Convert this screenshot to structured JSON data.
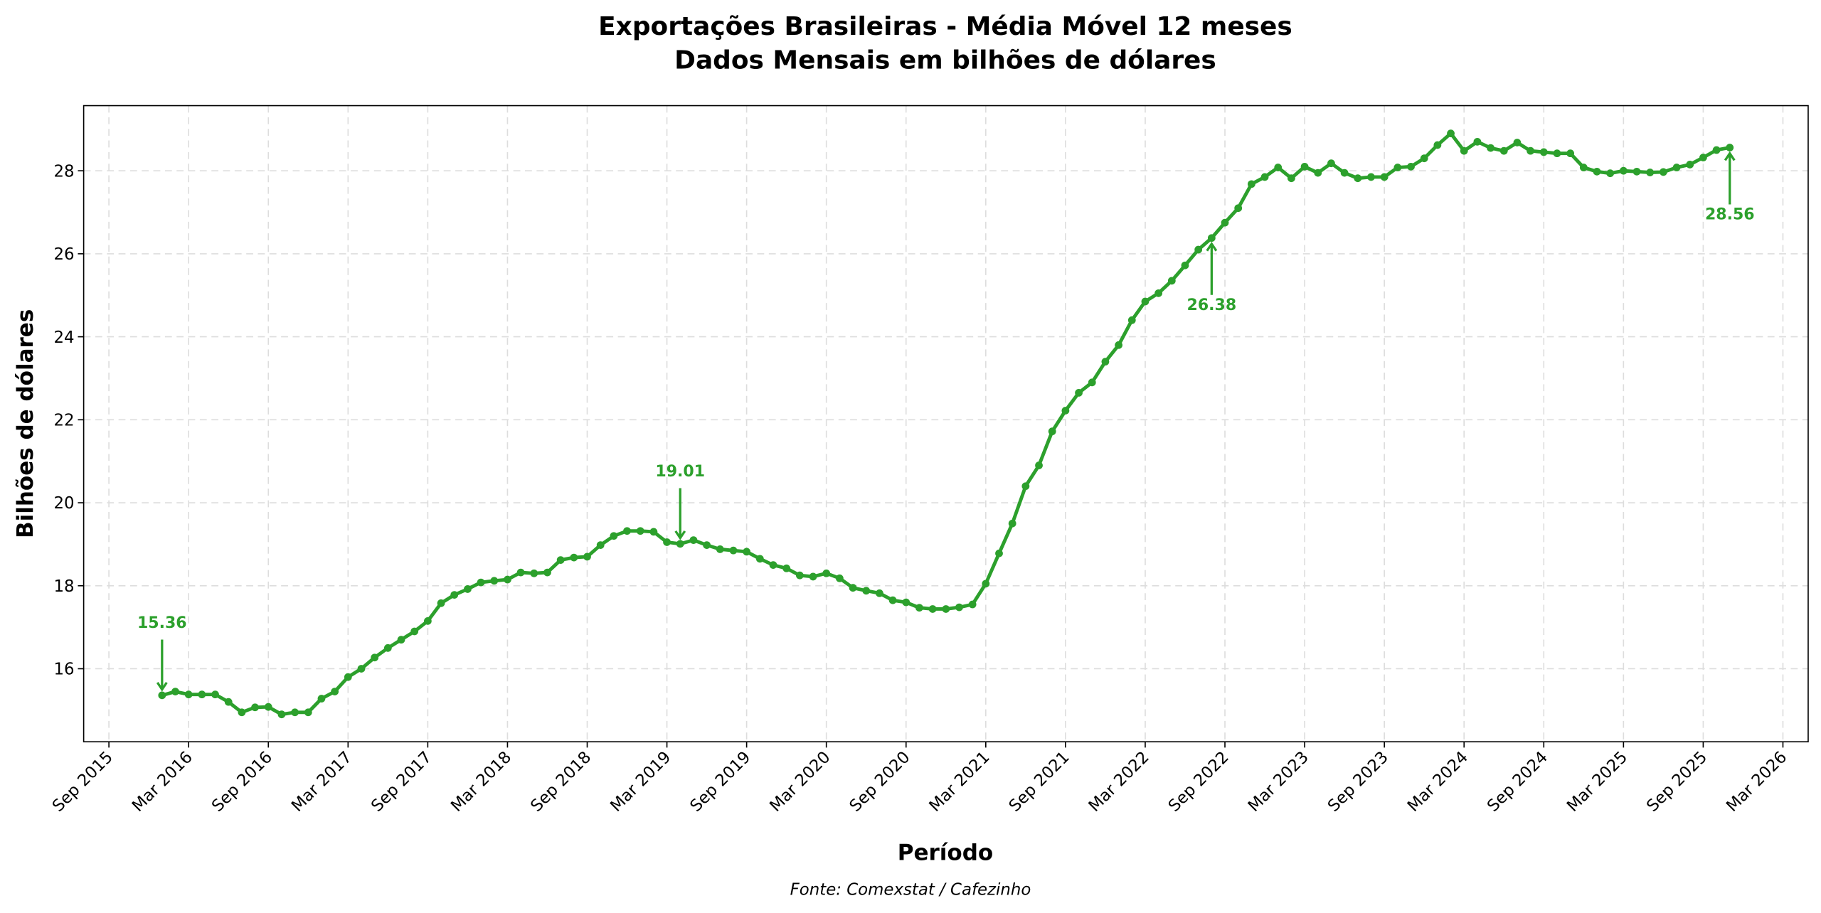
{
  "chart_data": {
    "type": "line",
    "title": "Exportações Brasileiras - Média Móvel 12 meses",
    "subtitle": "Dados Mensais em bilhões de dólares",
    "xlabel": "Período",
    "ylabel": "Bilhões de dólares",
    "source": "Fonte: Comexstat / Cafezinho",
    "start_month": "2016-01",
    "x_range_months_from_start": [
      -5.9,
      123.9
    ],
    "ylim": [
      14.24,
      29.57
    ],
    "yticks": [
      16,
      18,
      20,
      22,
      24,
      26,
      28
    ],
    "xticks": [
      {
        "label": "Sep 2015",
        "month_index": -4
      },
      {
        "label": "Mar 2016",
        "month_index": 2
      },
      {
        "label": "Sep 2016",
        "month_index": 8
      },
      {
        "label": "Mar 2017",
        "month_index": 14
      },
      {
        "label": "Sep 2017",
        "month_index": 20
      },
      {
        "label": "Mar 2018",
        "month_index": 26
      },
      {
        "label": "Sep 2018",
        "month_index": 32
      },
      {
        "label": "Mar 2019",
        "month_index": 38
      },
      {
        "label": "Sep 2019",
        "month_index": 44
      },
      {
        "label": "Mar 2020",
        "month_index": 50
      },
      {
        "label": "Sep 2020",
        "month_index": 56
      },
      {
        "label": "Mar 2021",
        "month_index": 62
      },
      {
        "label": "Sep 2021",
        "month_index": 68
      },
      {
        "label": "Mar 2022",
        "month_index": 74
      },
      {
        "label": "Sep 2022",
        "month_index": 80
      },
      {
        "label": "Mar 2023",
        "month_index": 86
      },
      {
        "label": "Sep 2023",
        "month_index": 92
      },
      {
        "label": "Mar 2024",
        "month_index": 98
      },
      {
        "label": "Sep 2024",
        "month_index": 104
      },
      {
        "label": "Mar 2025",
        "month_index": 110
      },
      {
        "label": "Sep 2025",
        "month_index": 116
      },
      {
        "label": "Mar 2026",
        "month_index": 122
      }
    ],
    "grid": true,
    "color": "#2ca02c",
    "values": [
      15.36,
      15.45,
      15.38,
      15.38,
      15.38,
      15.2,
      14.95,
      15.07,
      15.08,
      14.9,
      14.95,
      14.95,
      15.28,
      15.45,
      15.8,
      16.0,
      16.27,
      16.5,
      16.7,
      16.9,
      17.15,
      17.58,
      17.78,
      17.92,
      18.08,
      18.12,
      18.15,
      18.32,
      18.3,
      18.32,
      18.62,
      18.68,
      18.7,
      18.98,
      19.2,
      19.32,
      19.32,
      19.3,
      19.05,
      19.01,
      19.1,
      18.98,
      18.88,
      18.85,
      18.82,
      18.65,
      18.5,
      18.42,
      18.25,
      18.22,
      18.3,
      18.18,
      17.95,
      17.88,
      17.82,
      17.65,
      17.6,
      17.47,
      17.44,
      17.44,
      17.48,
      17.55,
      18.05,
      18.78,
      19.5,
      20.4,
      20.9,
      21.72,
      22.22,
      22.65,
      22.9,
      23.4,
      23.8,
      24.4,
      24.85,
      25.05,
      25.35,
      25.72,
      26.1,
      26.38,
      26.75,
      27.1,
      27.68,
      27.85,
      28.08,
      27.82,
      28.1,
      27.95,
      28.18,
      27.95,
      27.82,
      27.85,
      27.85,
      28.08,
      28.1,
      28.3,
      28.62,
      28.9,
      28.48,
      28.7,
      28.55,
      28.48,
      28.68,
      28.48,
      28.45,
      28.42,
      28.42,
      28.08,
      27.98,
      27.94,
      28.0,
      27.98,
      27.96,
      27.97,
      28.08,
      28.15,
      28.32,
      28.5,
      28.56
    ],
    "annotations": [
      {
        "label": "15.36",
        "month_index": 0,
        "value": 15.36,
        "side": "above"
      },
      {
        "label": "19.01",
        "month_index": 39,
        "value": 19.01,
        "side": "above"
      },
      {
        "label": "26.38",
        "month_index": 79,
        "value": 26.38,
        "side": "below"
      },
      {
        "label": "28.56",
        "month_index": 118,
        "value": 28.56,
        "side": "below"
      }
    ]
  }
}
